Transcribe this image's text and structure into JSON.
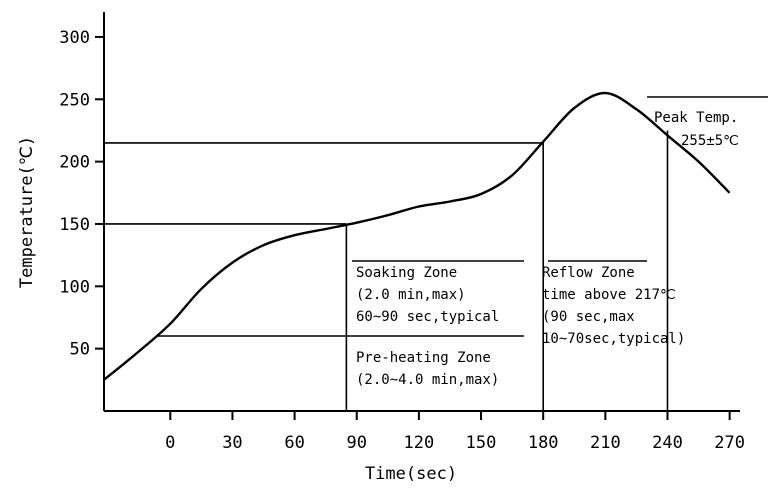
{
  "chart_data": {
    "type": "line",
    "xlabel": "Time(sec)",
    "ylabel": "Temperature(℃)",
    "xlim": [
      -32,
      275
    ],
    "ylim": [
      0,
      320
    ],
    "x_ticks": [
      0,
      30,
      60,
      90,
      120,
      150,
      180,
      210,
      240,
      270
    ],
    "y_ticks": [
      50,
      100,
      150,
      200,
      250,
      300
    ],
    "series": [
      {
        "x": [
          -32,
          -15,
          0,
          15,
          30,
          45,
          60,
          75,
          90,
          105,
          120,
          135,
          150,
          165,
          180,
          195,
          210,
          225,
          240,
          255,
          270
        ],
        "y": [
          25,
          48,
          70,
          98,
          119,
          133,
          141,
          146,
          151,
          157,
          164,
          168,
          174,
          189,
          216,
          243,
          255,
          242,
          221,
          200,
          175
        ]
      }
    ],
    "reference_lines": {
      "hlines": [
        {
          "y": 150,
          "x_from": -32,
          "x_to": 85
        },
        {
          "y": 215,
          "x_from": -32,
          "x_to": 180
        }
      ],
      "vlines": [
        {
          "x": 85,
          "y_from": 0,
          "y_to": 150
        },
        {
          "x": 180,
          "y_from": 0,
          "y_to": 215
        },
        {
          "x": 240,
          "y_from": 0,
          "y_to": 225
        }
      ]
    },
    "annotations": {
      "peak": {
        "title": "Peak Temp.",
        "value": "255±5℃"
      },
      "soaking": {
        "lines": [
          "Soaking Zone",
          "(2.0 min,max)",
          "60~90 sec,typical"
        ]
      },
      "preheat": {
        "lines": [
          "Pre-heating Zone",
          "(2.0~4.0 min,max)"
        ]
      },
      "reflow": {
        "lines": [
          "Reflow Zone",
          "time above 217℃",
          "(90 sec,max",
          "10~70sec,typical)"
        ]
      }
    }
  }
}
